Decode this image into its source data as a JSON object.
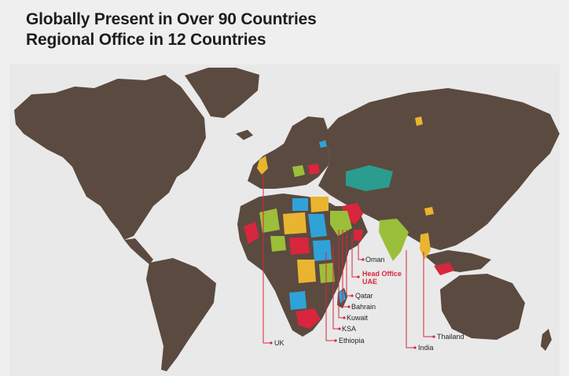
{
  "heading": {
    "line1": "Globally Present in Over 90 Countries",
    "line2": "Regional Office in 12 Countries"
  },
  "colors": {
    "land": "#5b4a3f",
    "highlight_red": "#d7263d",
    "highlight_blue": "#2fa3d8",
    "highlight_green": "#9bbf3a",
    "highlight_yellow": "#e9b530",
    "highlight_teal": "#2a9d8f",
    "leader_line": "#d7263d"
  },
  "labels": {
    "oman": "Oman",
    "head_office": "Head Office",
    "uae": "UAE",
    "qatar": "Qatar",
    "bahrain": "Bahrain",
    "kuwait": "Kuwait",
    "ksa": "KSA",
    "ethiopia": "Ethiopia",
    "uk": "UK",
    "thailand": "Thailand",
    "india": "India"
  }
}
